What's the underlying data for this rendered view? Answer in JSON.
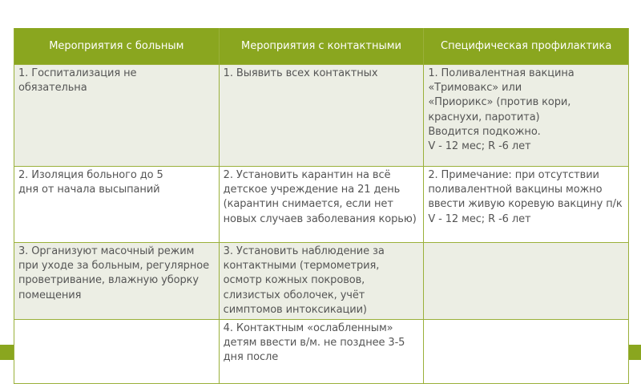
{
  "table": {
    "headers": [
      "Мероприятия с больным",
      "Мероприятия с контактными",
      "Специфическая профилактика"
    ],
    "rows": [
      [
        "1. Госпитализация не\n    обязательна",
        "1. Выявить всех контактных",
        "1. Поливалентная вакцина\n    «Тримовакс» или\n    «Приорикс» (против кори,\n    краснухи, паротита)\n    Вводится подкожно.\n        V - 12 мес; R -6 лет"
      ],
      [
        "2.  Изоляция больного до 5\n     дня от начала высыпаний",
        "2.  Установить карантин на всё детское учреждение на 21 день (карантин снимается, если  нет новых случаев заболевания корью)",
        "2.   Примечание: при отсутствии поливалентной вакцины можно ввести живую коревую вакцину п/к\n V - 12 мес; R -6 лет"
      ],
      [
        "3.  Организуют масочный режим при уходе за больным, регулярное проветривание, влажную уборку помещения",
        "3. Установить наблюдение за контактными (термометрия, осмотр кожных покровов, слизистых оболочек, учёт симптомов интоксикации)",
        ""
      ],
      [
        "",
        "4.  Контактным «ослабленным» детям ввести в/м. не позднее 3-5 дня после",
        ""
      ]
    ]
  },
  "colors": {
    "accent": "#8aa61f",
    "row_alt": "#eceee4"
  }
}
